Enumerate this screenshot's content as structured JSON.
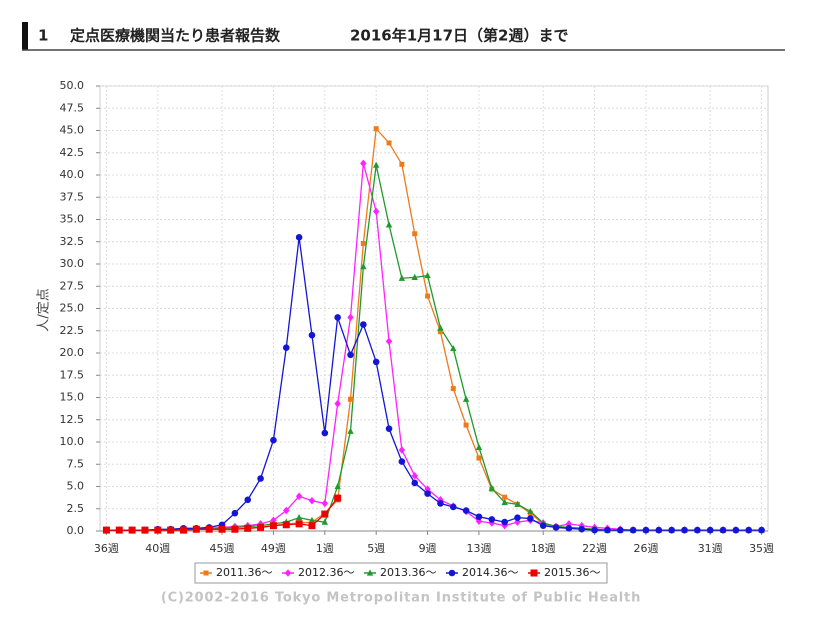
{
  "header": {
    "number": "1",
    "title": "定点医療機関当たり患者報告数",
    "date": "2016年1月17日（第2週）まで"
  },
  "chart_data": {
    "type": "line",
    "y_label": "人/定点",
    "categories": [
      "36週",
      null,
      null,
      null,
      "40週",
      null,
      null,
      null,
      null,
      "45週",
      null,
      null,
      null,
      "49週",
      null,
      null,
      null,
      "1週",
      null,
      null,
      null,
      "5週",
      null,
      null,
      null,
      "9週",
      null,
      null,
      null,
      "13週",
      null,
      null,
      null,
      null,
      "18週",
      null,
      null,
      null,
      "22週",
      null,
      null,
      null,
      "26週",
      null,
      null,
      null,
      null,
      "31週",
      null,
      null,
      null,
      "35週"
    ],
    "ylim": [
      0,
      50
    ],
    "yticks": [
      {
        "value": 0,
        "label": "0.0"
      },
      2.5,
      {
        "value": 5,
        "label": "5.0"
      },
      7.5,
      {
        "value": 10,
        "label": "10.0"
      },
      12.5,
      {
        "value": 15,
        "label": "15.0"
      },
      17.5,
      {
        "value": 20,
        "label": "20.0"
      },
      22.5,
      {
        "value": 25,
        "label": "25.0"
      },
      27.5,
      {
        "value": 30,
        "label": "30.0"
      },
      32.5,
      {
        "value": 35,
        "label": "35.0"
      },
      37.5,
      {
        "value": 40,
        "label": "40.0"
      },
      42.5,
      {
        "value": 45,
        "label": "45.0"
      },
      47.5,
      {
        "value": 50,
        "label": "50.0"
      }
    ],
    "grid": true,
    "legend": "bottom",
    "series": [
      {
        "name": "2011.36～",
        "color": "#ee7a1c",
        "marker": "square",
        "values": [
          0.1,
          0.1,
          0.1,
          0.1,
          0.1,
          0.1,
          0.1,
          0.2,
          0.2,
          0.2,
          0.2,
          0.3,
          0.4,
          0.6,
          0.8,
          0.9,
          1.0,
          2.0,
          3.5,
          14.8,
          32.3,
          45.2,
          43.6,
          41.2,
          33.4,
          26.4,
          22.4,
          16.0,
          11.9,
          8.2,
          4.7,
          3.8,
          3.0,
          2.0,
          0.8,
          0.5,
          0.4,
          0.3,
          0.2,
          0.1,
          0.1,
          0.1,
          0.1,
          0.1,
          0.1,
          0.1,
          0.1,
          0.1,
          0.1,
          0.1,
          0.1,
          0.1
        ]
      },
      {
        "name": "2012.36～",
        "color": "#ff22ff",
        "marker": "diamond",
        "values": [
          0.1,
          0.1,
          0.1,
          0.1,
          0.1,
          0.1,
          0.2,
          0.2,
          0.3,
          0.4,
          0.5,
          0.6,
          0.8,
          1.2,
          2.3,
          3.9,
          3.4,
          3.1,
          14.3,
          24.0,
          41.3,
          35.9,
          21.3,
          9.1,
          6.2,
          4.7,
          3.5,
          2.8,
          2.2,
          1.1,
          0.9,
          0.6,
          1.0,
          1.2,
          0.9,
          0.5,
          0.8,
          0.6,
          0.4,
          0.3,
          0.2,
          0.1,
          0.1,
          0.1,
          0.1,
          0.1,
          0.1,
          0.1,
          0.1,
          0.1,
          0.1,
          0.1
        ]
      },
      {
        "name": "2013.36～",
        "color": "#1f9a2e",
        "marker": "triangle",
        "values": [
          0.1,
          0.1,
          0.1,
          0.1,
          0.1,
          0.1,
          0.1,
          0.2,
          0.2,
          0.3,
          0.4,
          0.5,
          0.6,
          0.8,
          1.0,
          1.5,
          1.2,
          1.0,
          5.0,
          11.2,
          29.7,
          41.1,
          34.4,
          28.4,
          28.5,
          28.7,
          22.8,
          20.5,
          14.8,
          9.4,
          4.8,
          3.2,
          3.0,
          2.2,
          0.9,
          0.5,
          0.4,
          0.3,
          0.2,
          0.1,
          0.1,
          0.1,
          0.1,
          0.1,
          0.1,
          0.1,
          0.1,
          0.1,
          0.1,
          0.1,
          0.1,
          0.1
        ]
      },
      {
        "name": "2014.36～",
        "color": "#1515d8",
        "marker": "circle",
        "values": [
          0.1,
          0.1,
          0.1,
          0.1,
          0.2,
          0.2,
          0.3,
          0.3,
          0.4,
          0.7,
          2.0,
          3.5,
          5.9,
          10.2,
          20.6,
          33.0,
          22.0,
          11.0,
          24.0,
          19.8,
          23.2,
          19.0,
          11.5,
          7.8,
          5.4,
          4.2,
          3.1,
          2.7,
          2.3,
          1.6,
          1.3,
          1.0,
          1.5,
          1.4,
          0.6,
          0.4,
          0.3,
          0.2,
          0.1,
          0.1,
          0.1,
          0.1,
          0.1,
          0.1,
          0.1,
          0.1,
          0.1,
          0.1,
          0.1,
          0.1,
          0.1,
          0.1
        ]
      },
      {
        "name": "2015.36～",
        "color": "#ee0000",
        "marker": "bigsquare",
        "values": [
          0.1,
          0.1,
          0.1,
          0.1,
          0.1,
          0.1,
          0.1,
          0.2,
          0.2,
          0.2,
          0.2,
          0.3,
          0.4,
          0.6,
          0.7,
          0.8,
          0.6,
          1.9,
          3.7,
          null,
          null,
          null,
          null,
          null,
          null,
          null,
          null,
          null,
          null,
          null,
          null,
          null,
          null,
          null,
          null,
          null,
          null,
          null,
          null,
          null,
          null,
          null,
          null,
          null,
          null,
          null,
          null,
          null,
          null,
          null,
          null,
          null
        ]
      }
    ]
  },
  "footer": "(C)2002-2016 Tokyo Metropolitan Institute of Public Health"
}
